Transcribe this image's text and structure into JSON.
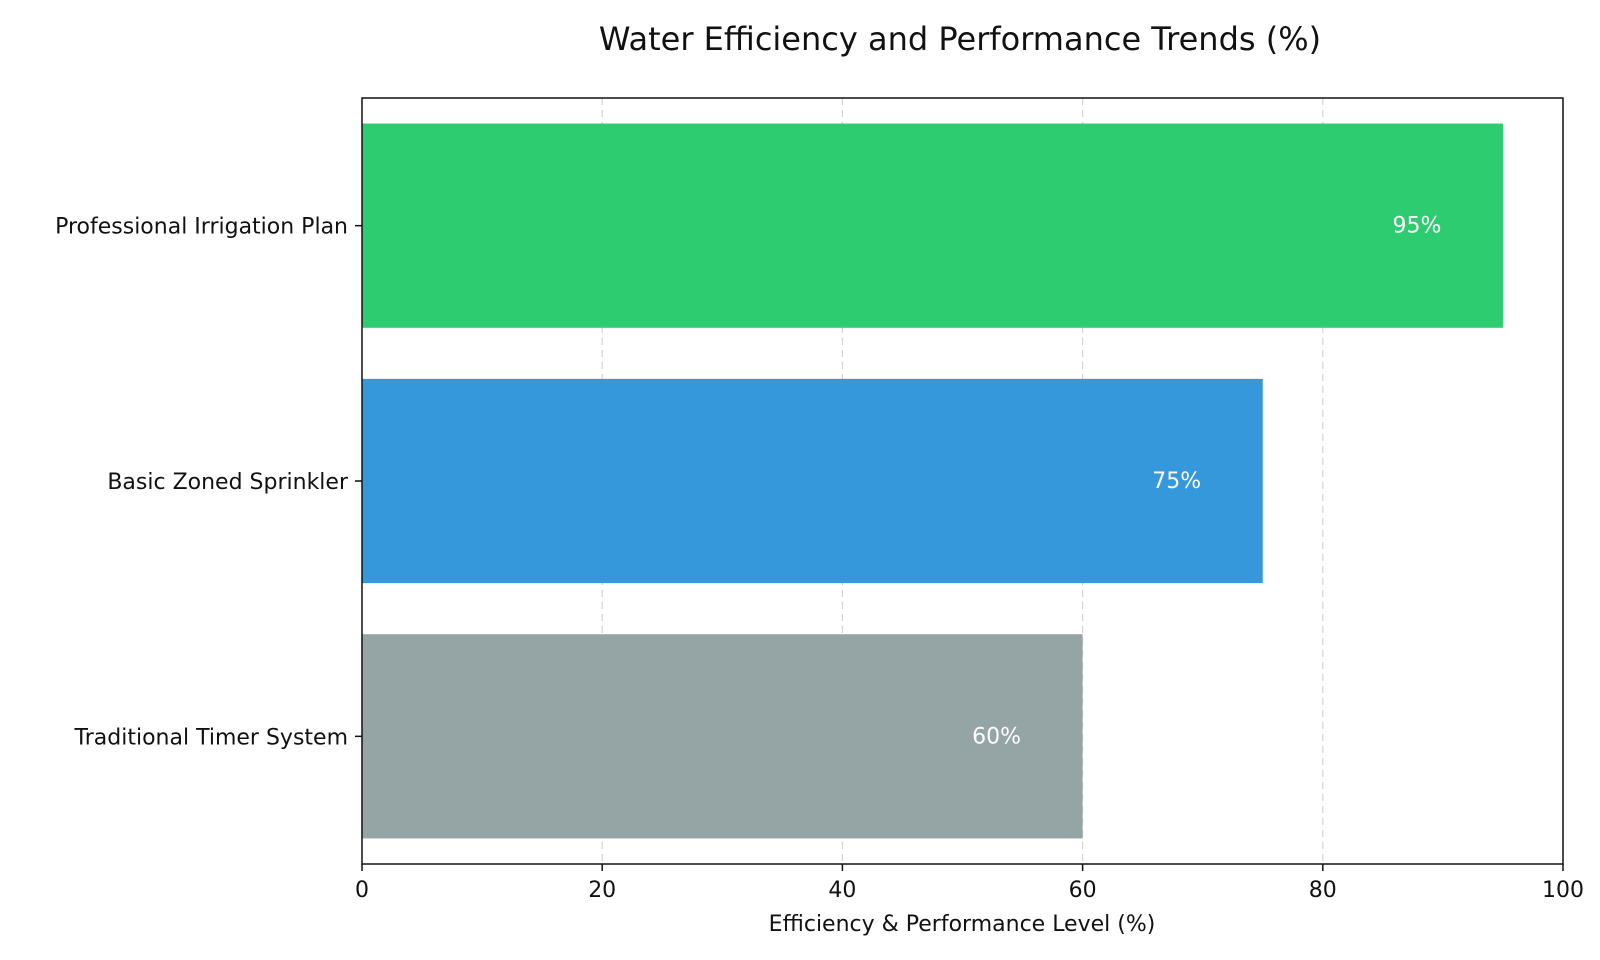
{
  "chart_data": {
    "type": "bar",
    "orientation": "horizontal",
    "title": "Water Efficiency and Performance Trends (%)",
    "xlabel": "Efficiency & Performance Level (%)",
    "ylabel": "",
    "xlim": [
      0,
      100
    ],
    "xticks": [
      0,
      20,
      40,
      60,
      80,
      100
    ],
    "xtick_labels": [
      "0",
      "20",
      "40",
      "60",
      "80",
      "100"
    ],
    "grid": "x",
    "categories": [
      "Professional Irrigation Plan",
      "Basic Zoned Sprinkler",
      "Traditional Timer System"
    ],
    "values": [
      95,
      75,
      60
    ],
    "value_labels": [
      "95%",
      "75%",
      "60%"
    ],
    "colors": [
      "#2ecc71",
      "#3498db",
      "#95a5a6"
    ]
  }
}
